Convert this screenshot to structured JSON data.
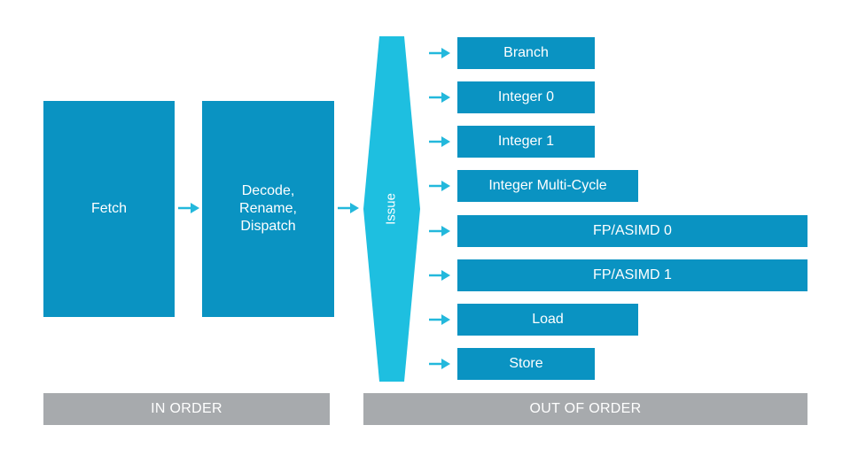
{
  "diagram": {
    "in_order": {
      "fetch_label": "Fetch",
      "decode_lines": [
        "Decode,",
        "Rename,",
        "Dispatch"
      ]
    },
    "issue_label": "Issue",
    "execution_units": [
      {
        "label": "Branch"
      },
      {
        "label": "Integer 0"
      },
      {
        "label": "Integer 1"
      },
      {
        "label": "Integer Multi-Cycle"
      },
      {
        "label": "FP/ASIMD 0"
      },
      {
        "label": "FP/ASIMD 1"
      },
      {
        "label": "Load"
      },
      {
        "label": "Store"
      }
    ],
    "footers": {
      "in_order": "IN ORDER",
      "out_of_order": "OUT OF ORDER"
    },
    "colors": {
      "stage_blue": "#0a93c2",
      "issue_cyan": "#1ebfe0",
      "arrow_cyan": "#23b8dc",
      "footer_gray": "#a7aaad"
    }
  }
}
